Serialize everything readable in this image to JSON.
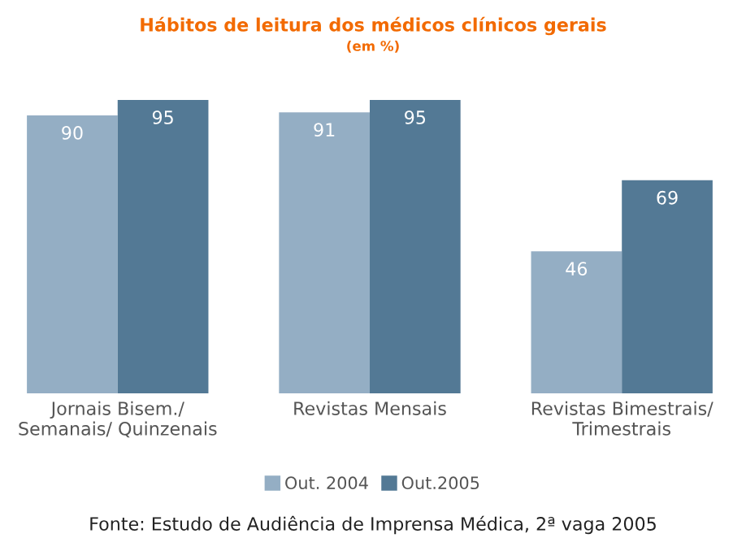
{
  "chart_data": {
    "type": "bar",
    "title": "Hábitos de leitura dos médicos clínicos gerais",
    "subtitle": "(em %)",
    "categories": [
      "Jornais Bisem./\nSemanais/ Quinzenais",
      "Revistas Mensais",
      "Revistas Bimestrais/\nTrimestrais"
    ],
    "series": [
      {
        "name": "Out. 2004",
        "color": "#94aec4",
        "values": [
          90,
          91,
          46
        ]
      },
      {
        "name": "Out.2005",
        "color": "#537995",
        "values": [
          95,
          95,
          69
        ]
      }
    ],
    "data_labels": true,
    "legend": "bottom",
    "grid": false,
    "tick_labels": "x",
    "annotations": [
      "Fonte: Estudo de Audiência de Imprensa Médica, 2ª vaga 2005"
    ]
  }
}
